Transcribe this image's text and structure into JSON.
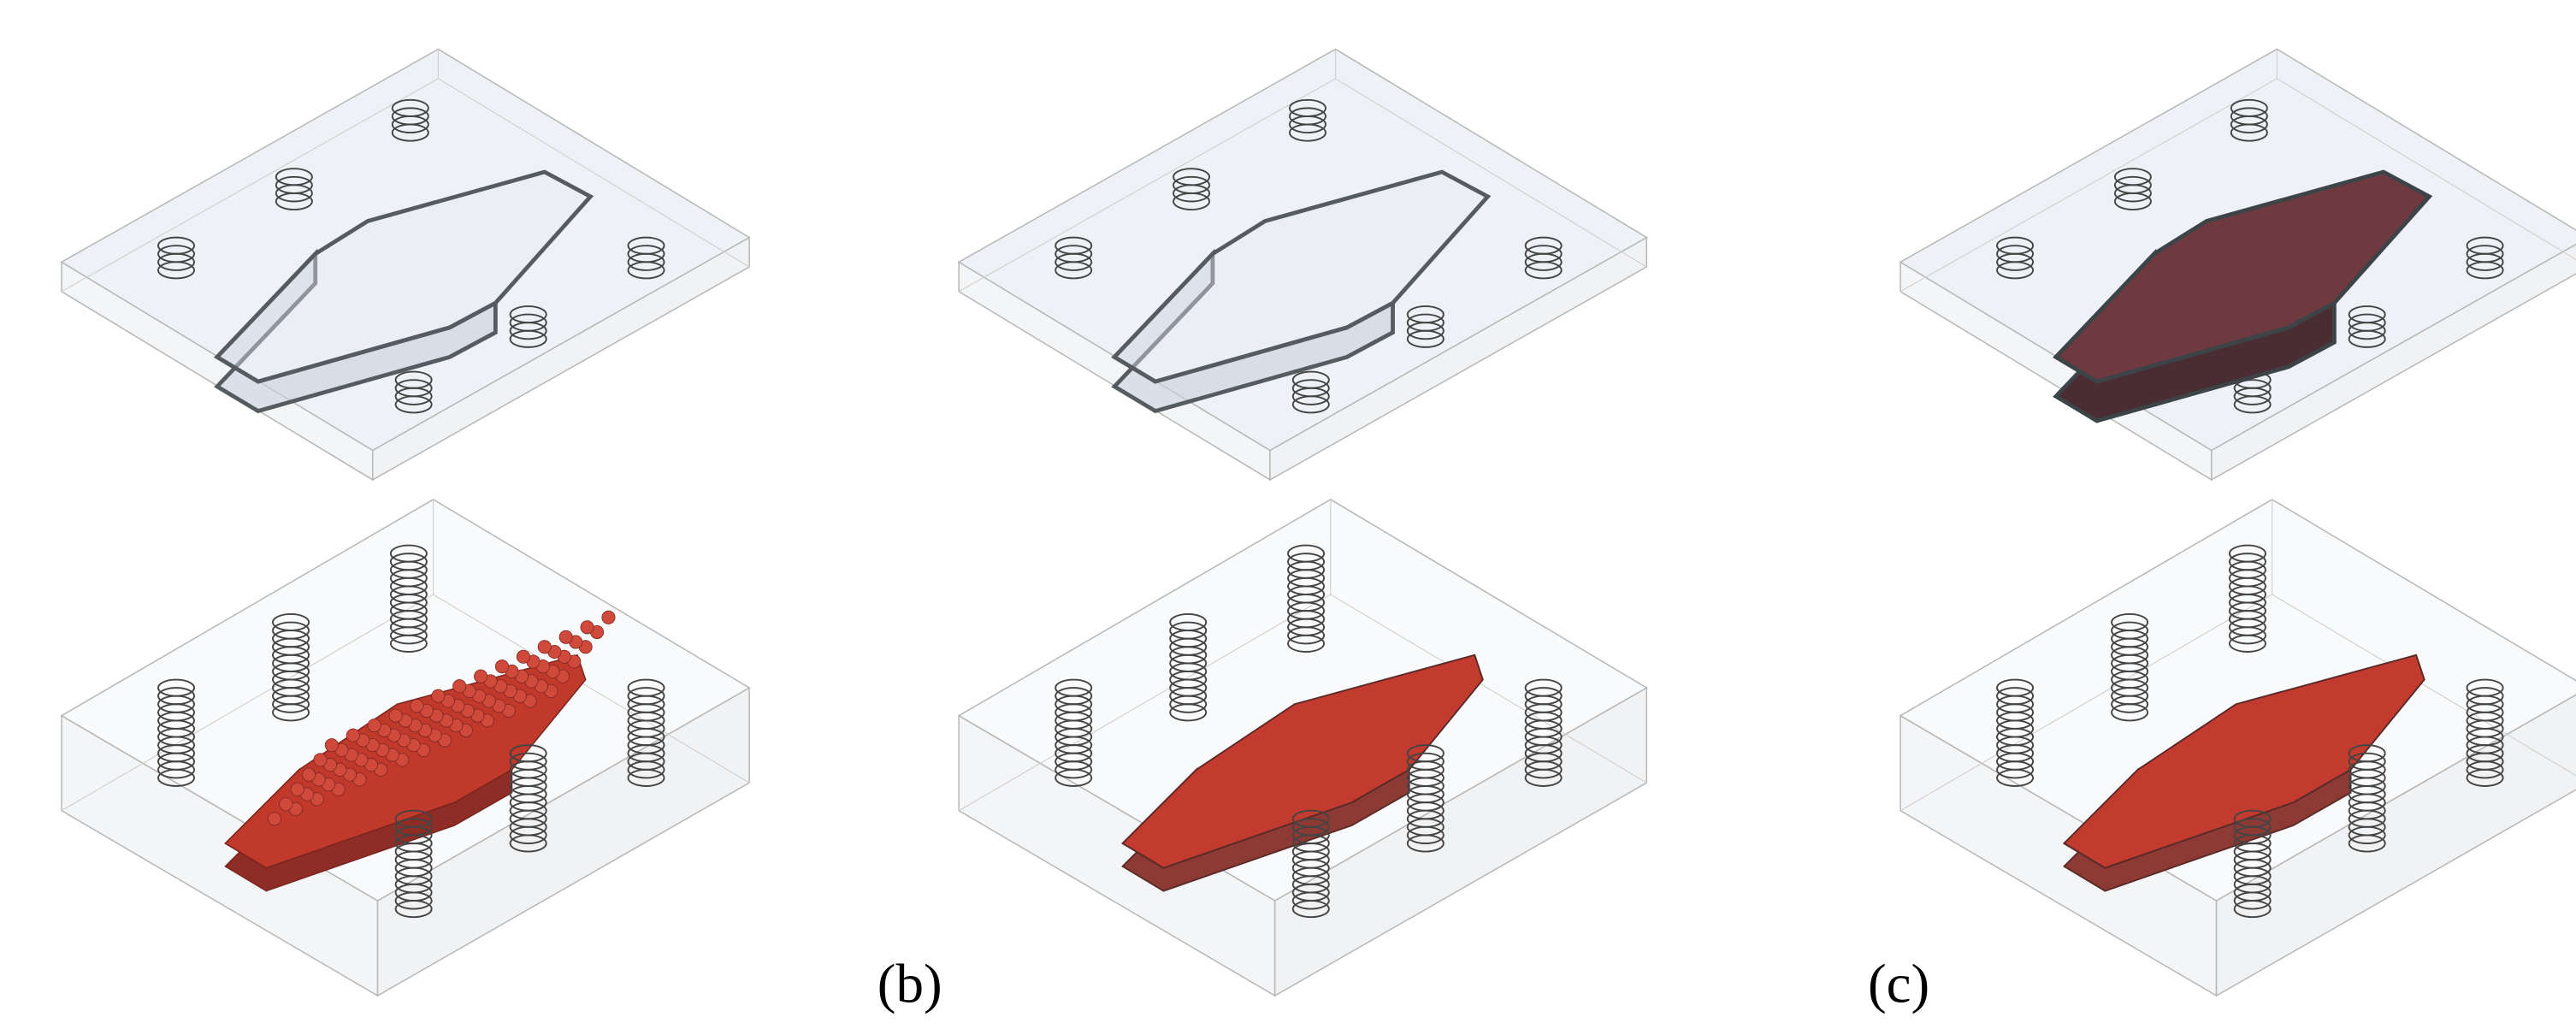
{
  "labels": [
    "(b)",
    "(c)"
  ]
}
